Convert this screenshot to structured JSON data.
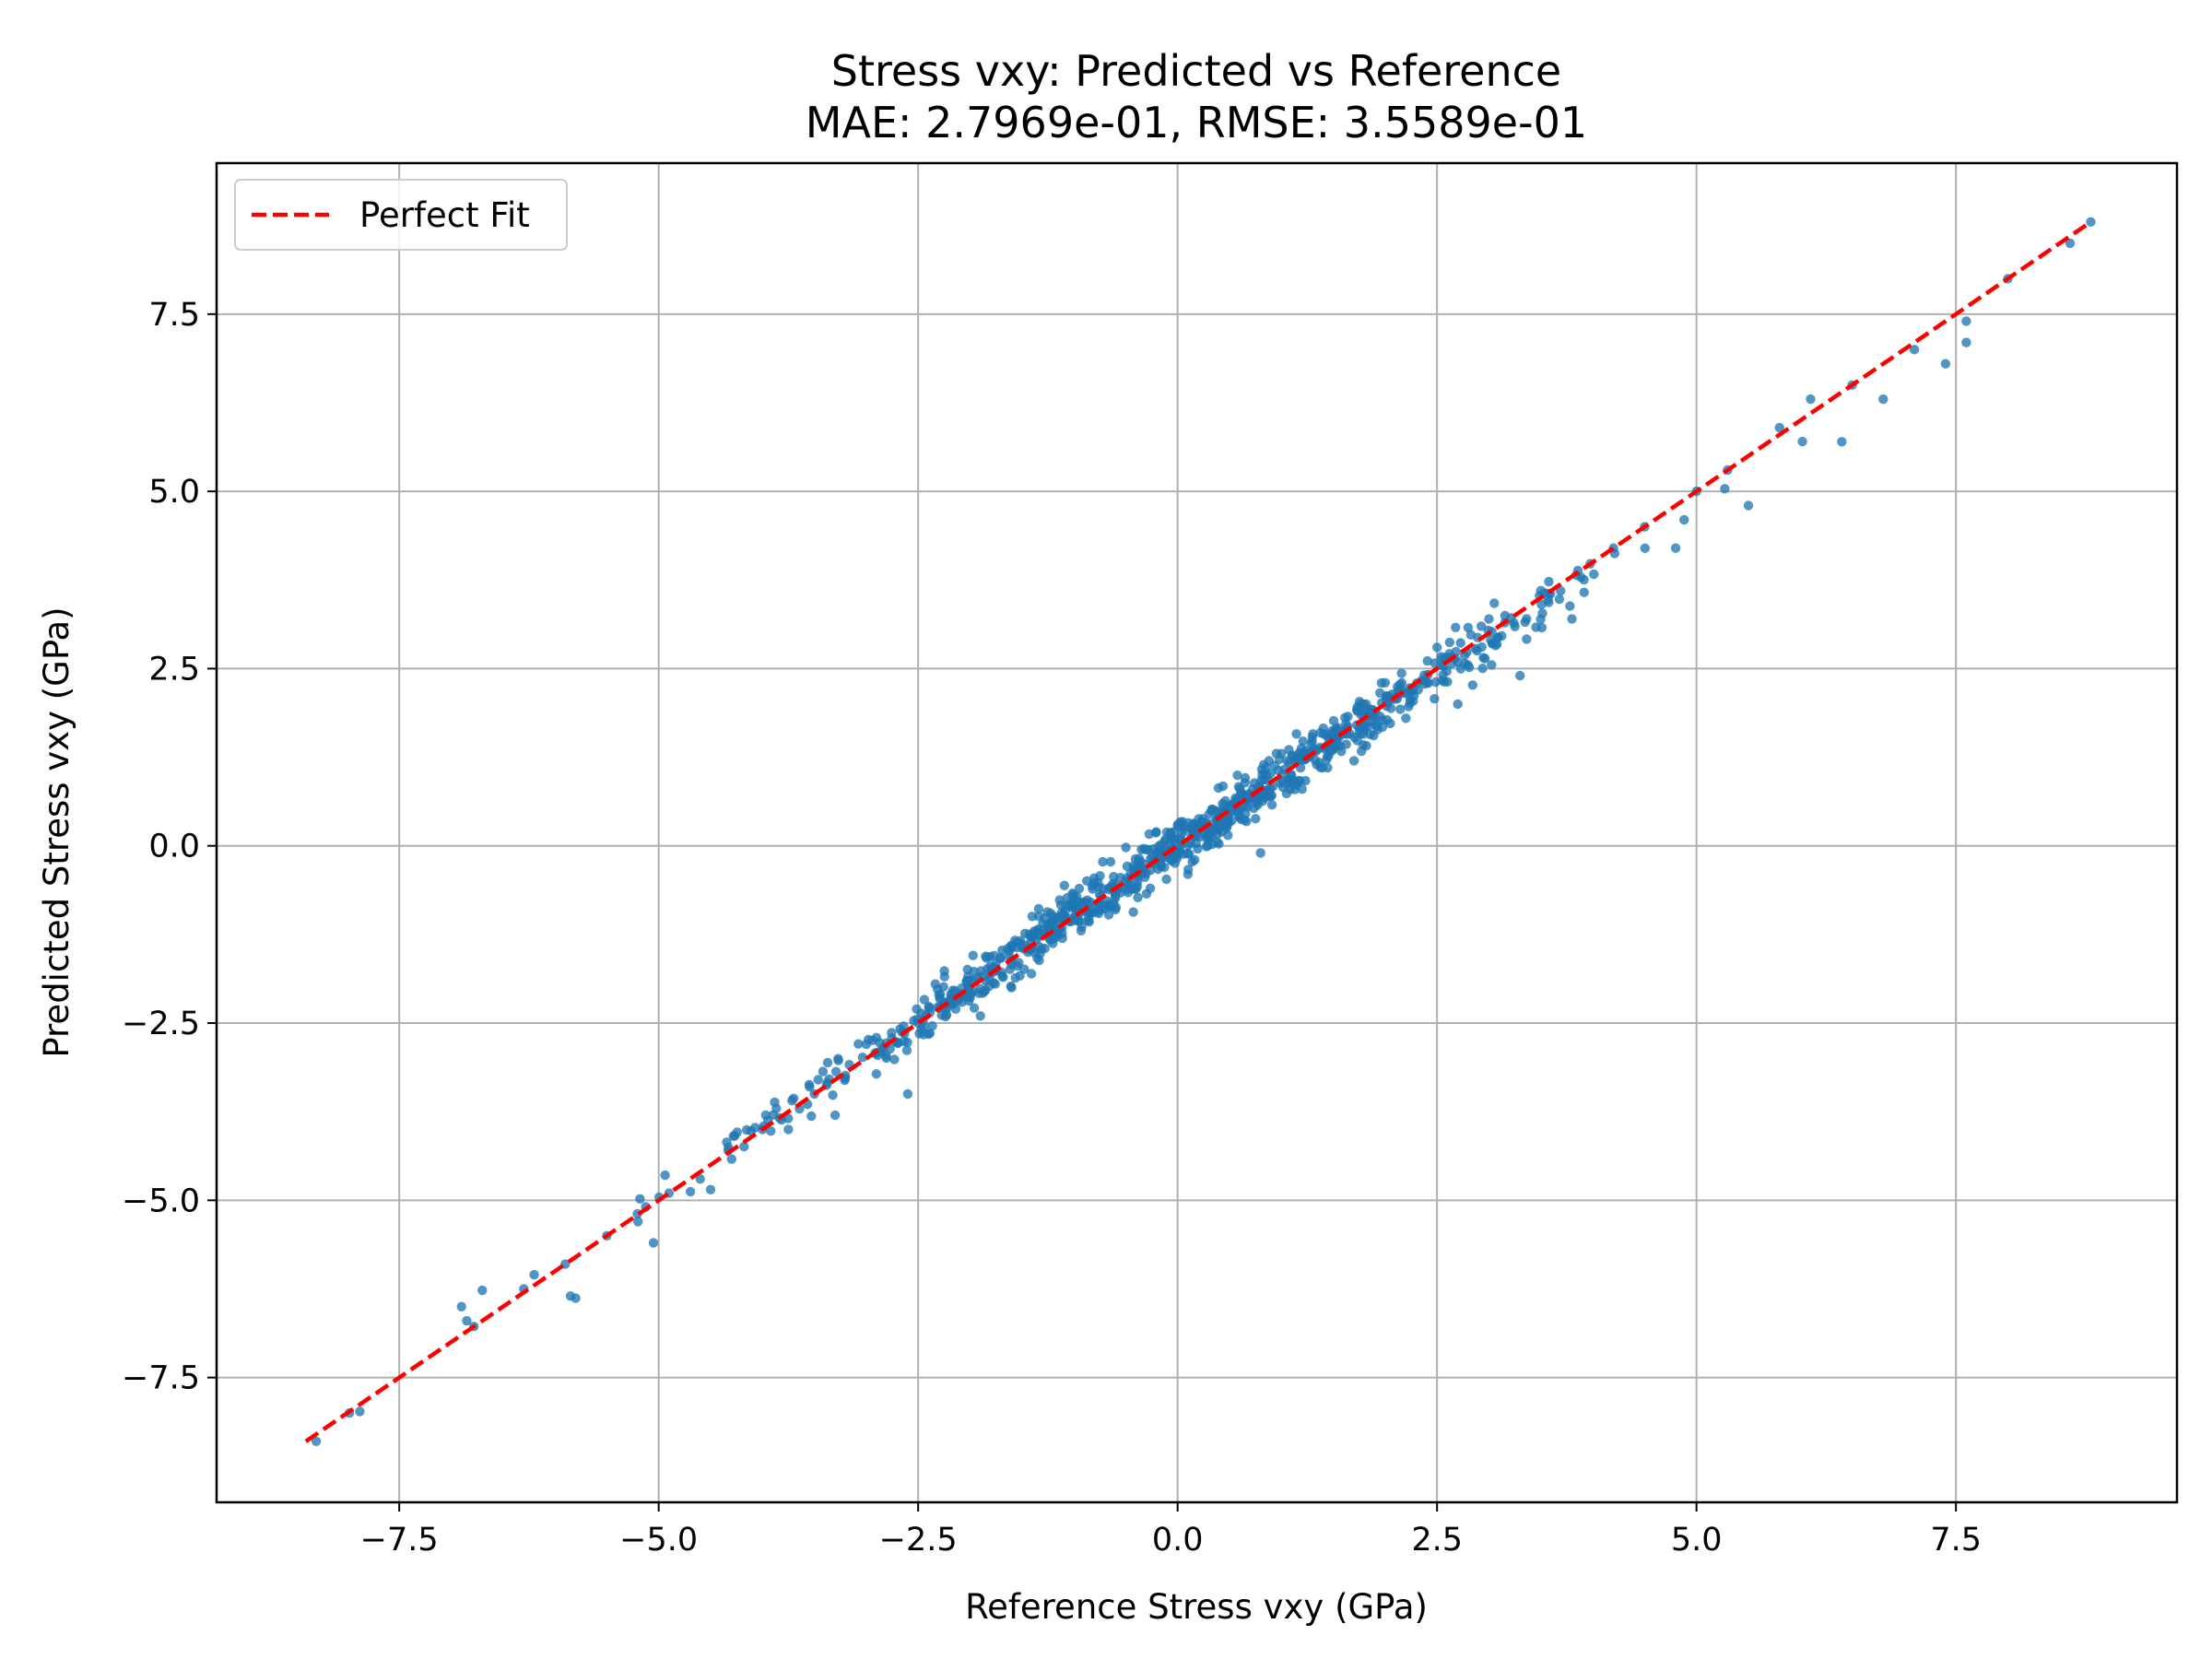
{
  "chart_data": {
    "type": "scatter",
    "title": "Stress vxy: Predicted vs Reference",
    "subtitle": "MAE: 2.7969e-01, RMSE: 3.5589e-01",
    "xlabel": "Reference Stress vxy (GPa)",
    "ylabel": "Predicted Stress vxy (GPa)",
    "xlim": [
      -9.26,
      9.63
    ],
    "ylim": [
      -9.26,
      9.63
    ],
    "xticks": [
      -7.5,
      -5.0,
      -2.5,
      0.0,
      2.5,
      5.0,
      7.5
    ],
    "yticks": [
      -7.5,
      -5.0,
      -2.5,
      0.0,
      2.5,
      5.0,
      7.5
    ],
    "xtick_labels": [
      "−7.5",
      "−5.0",
      "−2.5",
      "0.0",
      "2.5",
      "5.0",
      "7.5"
    ],
    "ytick_labels": [
      "−7.5",
      "−5.0",
      "−2.5",
      "0.0",
      "2.5",
      "5.0",
      "7.5"
    ],
    "grid": true,
    "legend_position": "top-left",
    "colors": {
      "points": "#1f77b4",
      "fit_line": "#ff0000",
      "grid": "#b0b0b0"
    },
    "series": [
      {
        "name": "",
        "kind": "scatter",
        "n_points": 1000,
        "x_range": [
          -8.3,
          8.8
        ],
        "y_range": [
          -8.4,
          8.8
        ],
        "sample_points": [
          [
            -8.3,
            -8.4
          ],
          [
            -7.98,
            -8.0
          ],
          [
            -7.88,
            -7.98
          ],
          [
            -6.9,
            -6.5
          ],
          [
            -6.85,
            -6.7
          ],
          [
            -6.78,
            -6.78
          ],
          [
            -6.7,
            -6.27
          ],
          [
            -6.3,
            -6.25
          ],
          [
            -6.2,
            -6.05
          ],
          [
            -5.9,
            -5.9
          ],
          [
            -5.85,
            -6.35
          ],
          [
            -5.8,
            -6.38
          ],
          [
            -5.5,
            -5.5
          ],
          [
            -5.2,
            -5.3
          ],
          [
            -5.05,
            -5.6
          ],
          [
            -4.9,
            -4.9
          ],
          [
            -4.6,
            -4.7
          ],
          [
            -4.5,
            -4.85
          ],
          [
            -4.0,
            -4.0
          ],
          [
            -3.75,
            -4.0
          ],
          [
            -3.5,
            -3.5
          ],
          [
            -3.3,
            -3.8
          ],
          [
            -3.0,
            -2.8
          ],
          [
            -2.6,
            -3.5
          ],
          [
            -2.5,
            -2.5
          ],
          [
            -2.0,
            -1.9
          ],
          [
            -1.9,
            -2.4
          ],
          [
            -1.6,
            -2.0
          ],
          [
            -1.3,
            -1.1
          ],
          [
            -1.0,
            -0.8
          ],
          [
            -0.6,
            -0.9
          ],
          [
            -0.5,
            -0.5
          ],
          [
            -0.2,
            -0.1
          ],
          [
            0.0,
            0.3
          ],
          [
            0.1,
            -0.4
          ],
          [
            0.3,
            0.1
          ],
          [
            0.6,
            0.5
          ],
          [
            0.8,
            -0.1
          ],
          [
            1.0,
            1.3
          ],
          [
            1.2,
            0.8
          ],
          [
            1.5,
            1.5
          ],
          [
            1.7,
            1.2
          ],
          [
            2.0,
            2.3
          ],
          [
            2.2,
            1.8
          ],
          [
            2.5,
            2.8
          ],
          [
            2.7,
            2.0
          ],
          [
            3.0,
            3.2
          ],
          [
            3.3,
            2.4
          ],
          [
            3.5,
            3.6
          ],
          [
            3.8,
            3.2
          ],
          [
            4.2,
            4.2
          ],
          [
            4.5,
            4.5
          ],
          [
            4.8,
            4.2
          ],
          [
            5.0,
            5.0
          ],
          [
            5.3,
            5.3
          ],
          [
            5.5,
            4.8
          ],
          [
            5.8,
            5.9
          ],
          [
            6.1,
            6.3
          ],
          [
            6.4,
            5.7
          ],
          [
            6.5,
            6.5
          ],
          [
            6.8,
            6.3
          ],
          [
            7.1,
            7.0
          ],
          [
            7.4,
            6.8
          ],
          [
            7.6,
            7.4
          ],
          [
            7.6,
            7.1
          ],
          [
            8.0,
            8.0
          ],
          [
            8.6,
            8.5
          ],
          [
            8.8,
            8.8
          ]
        ]
      },
      {
        "name": "Perfect Fit",
        "kind": "line",
        "x": [
          -8.4,
          8.8
        ],
        "y": [
          -8.4,
          8.8
        ]
      }
    ]
  }
}
